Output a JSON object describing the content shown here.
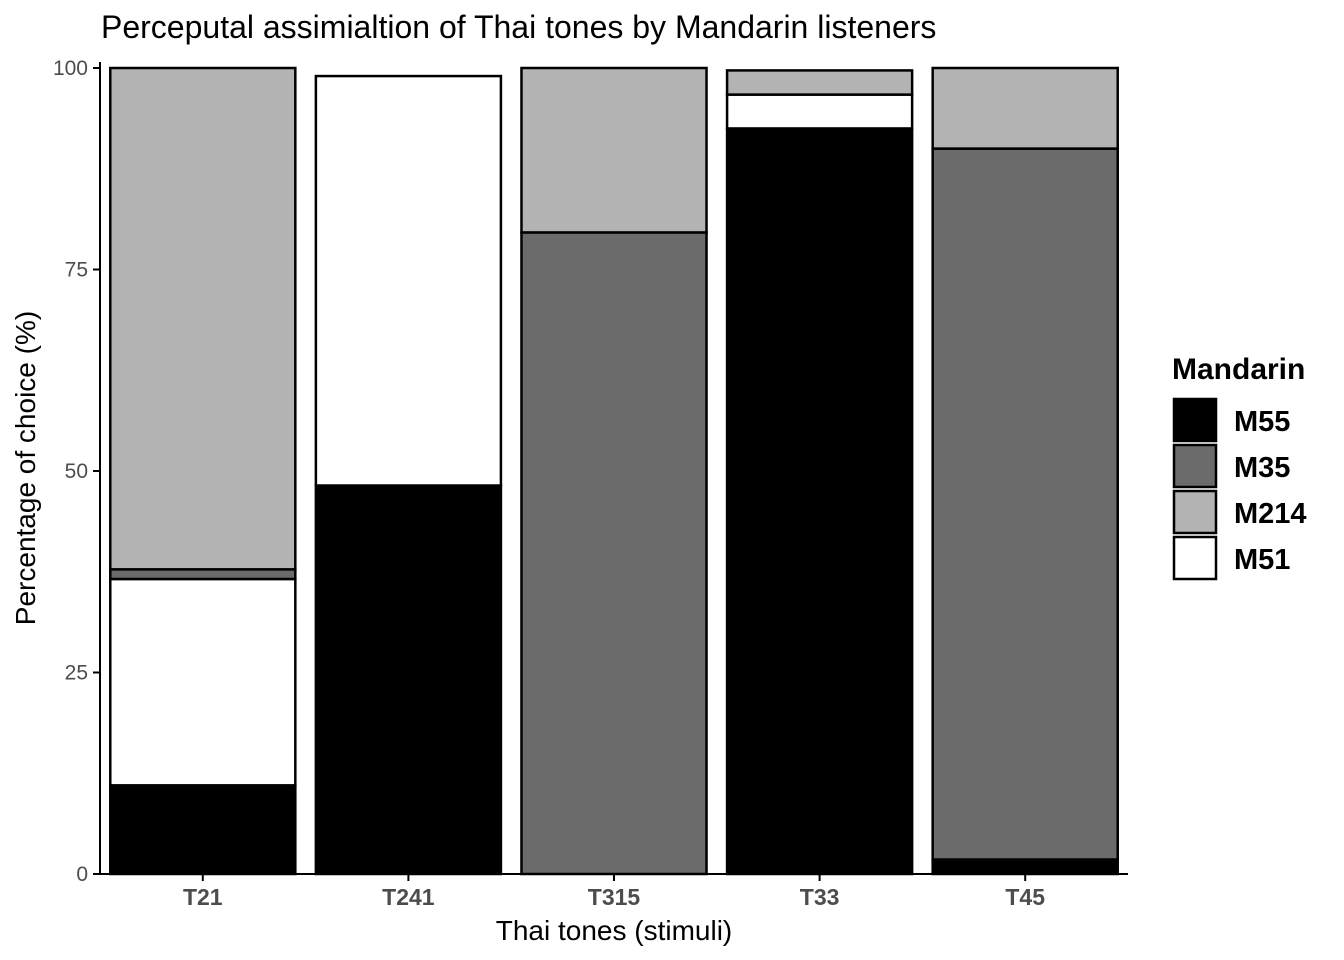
{
  "chart_data": {
    "type": "bar",
    "stacked": true,
    "title": "Perceputal assimialtion of Thai tones by Mandarin listeners",
    "xlabel": "Thai tones (stimuli)",
    "ylabel": "Percentage of choice (%)",
    "ylim": [
      0,
      100
    ],
    "yticks": [
      "0",
      "25",
      "50",
      "75",
      "100"
    ],
    "grid": false,
    "legend_position": "right",
    "categories": [
      "T21",
      "T241",
      "T315",
      "T33",
      "T45"
    ],
    "stack_order_bottom_to_top": [
      "M55",
      "M51",
      "M35",
      "M214"
    ],
    "legend": {
      "title": "Mandarin",
      "entries": [
        "M55",
        "M35",
        "M214",
        "M51"
      ]
    },
    "series": [
      {
        "name": "M55",
        "color": "#000000",
        "values": [
          11.0,
          48.2,
          0.0,
          92.5,
          1.8
        ]
      },
      {
        "name": "M51",
        "color": "#ffffff",
        "values": [
          25.6,
          50.8,
          0.0,
          4.2,
          0.0
        ]
      },
      {
        "name": "M35",
        "color": "#6b6b6b",
        "values": [
          1.2,
          0.0,
          79.6,
          0.0,
          88.2
        ]
      },
      {
        "name": "M214",
        "color": "#b3b3b3",
        "values": [
          62.2,
          0.0,
          20.4,
          3.0,
          10.0
        ]
      }
    ]
  }
}
